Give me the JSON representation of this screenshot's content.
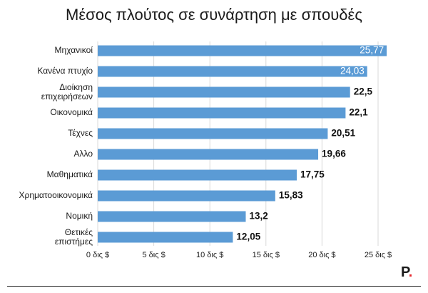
{
  "title": "Μέσος πλούτος σε συνάρτηση με σπουδές",
  "brand": {
    "letter": "P",
    "dot": ".",
    "dot_color": "#e5262b"
  },
  "chart_data": {
    "type": "bar",
    "orientation": "horizontal",
    "title": "Μέσος πλούτος σε συνάρτηση με σπουδές",
    "categories": [
      "Μηχανικοί",
      "Κανένα πτυχίο",
      "Διοίκηση επιχειρήσεων",
      "Οικονομικά",
      "Τέχνες",
      "Αλλο",
      "Μαθηματικά",
      "Χρηματοοικονομικά",
      "Νομική",
      "Θετικές επιστήμες"
    ],
    "values": [
      25.77,
      24.03,
      22.5,
      22.1,
      20.51,
      19.66,
      17.75,
      15.83,
      13.2,
      12.05
    ],
    "value_labels": [
      "25,77",
      "24,03",
      "22,5",
      "22,1",
      "20,51",
      "19,66",
      "17,75",
      "15,83",
      "13,2",
      "12,05"
    ],
    "xlim": [
      0,
      25
    ],
    "ticks": [
      0,
      5,
      10,
      15,
      20,
      25
    ],
    "tick_labels": [
      "0 δις $",
      "5 δις  $",
      "10 δις $",
      "15 δις $",
      "20 δις $",
      "25 δις $"
    ],
    "grid": true,
    "bar_color": "#5b9bd5",
    "grid_color": "#d9d9d9"
  }
}
